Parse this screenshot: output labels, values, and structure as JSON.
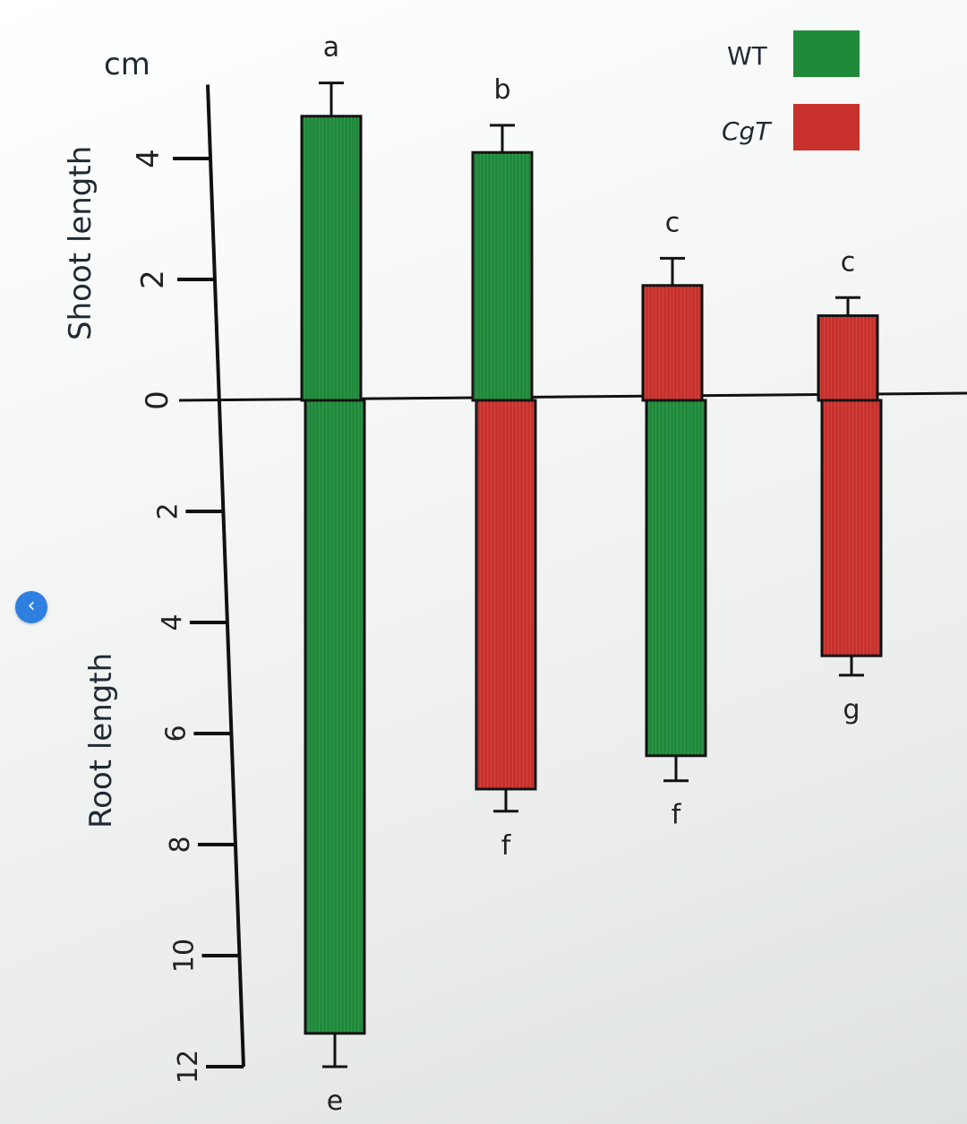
{
  "chart_data": {
    "type": "bar",
    "unit": "cm",
    "shoot_axis_label": "Shoot length",
    "root_axis_label": "Root length",
    "shoot_ticks": [
      "4",
      "2",
      "0"
    ],
    "root_ticks": [
      "2",
      "4",
      "6",
      "8",
      "10",
      "12"
    ],
    "shoot_ylim": [
      0,
      5
    ],
    "root_ylim": [
      0,
      12
    ],
    "legend": [
      {
        "name": "WT",
        "color": "#1f8a3a"
      },
      {
        "name": "CgT",
        "color": "#c8312c"
      }
    ],
    "bars": [
      {
        "shoot": 4.7,
        "shoot_err": 0.55,
        "shoot_type": "WT",
        "shoot_letter": "a",
        "root": 11.4,
        "root_err": 0.6,
        "root_type": "WT",
        "root_letter": "e"
      },
      {
        "shoot": 4.1,
        "shoot_err": 0.45,
        "shoot_type": "WT",
        "shoot_letter": "b",
        "root": 7.0,
        "root_err": 0.4,
        "root_type": "CgT",
        "root_letter": "f"
      },
      {
        "shoot": 1.9,
        "shoot_err": 0.45,
        "shoot_type": "CgT",
        "shoot_letter": "c",
        "root": 6.4,
        "root_err": 0.45,
        "root_type": "WT",
        "root_letter": "f"
      },
      {
        "shoot": 1.4,
        "shoot_err": 0.3,
        "shoot_type": "CgT",
        "shoot_letter": "c",
        "root": 4.6,
        "root_err": 0.35,
        "root_type": "CgT",
        "root_letter": "g"
      }
    ]
  },
  "colors": {
    "WT": "#1f8a3a",
    "CgT": "#c8312c",
    "axis": "#111111",
    "nav_button": "#2f7fe0"
  },
  "nav": {
    "back_glyph": "‹",
    "icon": "chevron-left-icon"
  }
}
